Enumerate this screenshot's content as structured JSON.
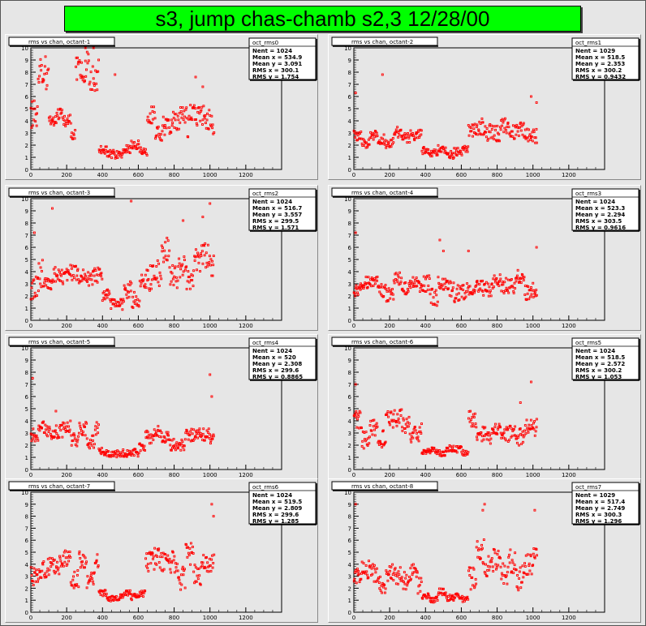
{
  "title": "s3, jump chas-chamb s2,3 12/28/00",
  "chart_data": [
    {
      "type": "scatter",
      "title": "rms vs chan, octant-1",
      "stats": {
        "name": "oct_rms0",
        "lines": [
          "Nent = 1024",
          "Mean x = 534.9",
          "Mean y = 3.091",
          "RMS x = 300.1",
          "RMS y = 1.754"
        ]
      },
      "xlim": [
        0,
        1400
      ],
      "ylim": [
        0,
        10
      ],
      "xticks": [
        0,
        200,
        400,
        600,
        800,
        1000,
        1200
      ],
      "yticks": [
        0,
        1,
        2,
        3,
        4,
        5,
        6,
        7,
        8,
        9,
        10
      ],
      "segments": [
        [
          0,
          40,
          2.0,
          5.2,
          7.3
        ],
        [
          40,
          100,
          4.2,
          6.5,
          9.3
        ],
        [
          100,
          180,
          3.2,
          4.2,
          5.2
        ],
        [
          180,
          250,
          2.4,
          3.5,
          4.5
        ],
        [
          250,
          300,
          5.0,
          7.0,
          9.6
        ],
        [
          300,
          380,
          3.0,
          7.0,
          10.0
        ],
        [
          380,
          650,
          0.8,
          1.4,
          2.4
        ],
        [
          650,
          880,
          2.0,
          3.8,
          5.4
        ],
        [
          880,
          1024,
          2.5,
          4.0,
          6.2
        ]
      ],
      "outliers": [
        [
          305,
          10.0
        ],
        [
          350,
          10.0
        ],
        [
          470,
          7.8
        ],
        [
          920,
          7.6
        ],
        [
          960,
          6.8
        ]
      ],
      "color": "#ff0000"
    },
    {
      "type": "scatter",
      "title": "rms vs chan, octant-2",
      "stats": {
        "name": "oct_rms1",
        "lines": [
          "Nent = 1029",
          "Mean x = 518.5",
          "Mean y = 2.353",
          "RMS x = 300.2",
          "RMS y = 0.9432"
        ]
      },
      "xlim": [
        0,
        1400
      ],
      "ylim": [
        0,
        10
      ],
      "xticks": [
        0,
        200,
        400,
        600,
        800,
        1000,
        1200
      ],
      "yticks": [
        0,
        1,
        2,
        3,
        4,
        5,
        6,
        7,
        8,
        9,
        10
      ],
      "segments": [
        [
          0,
          380,
          1.5,
          2.4,
          3.5
        ],
        [
          380,
          640,
          0.8,
          1.4,
          2.2
        ],
        [
          640,
          1024,
          2.0,
          3.3,
          5.0
        ]
      ],
      "outliers": [
        [
          10,
          6.3
        ],
        [
          160,
          7.8
        ],
        [
          990,
          6.0
        ],
        [
          1020,
          5.5
        ]
      ],
      "color": "#ff0000"
    },
    {
      "type": "scatter",
      "title": "rms vs chan, octant-3",
      "stats": {
        "name": "oct_rms2",
        "lines": [
          "Nent = 1024",
          "Mean x = 516.7",
          "Mean y = 3.557",
          "RMS x = 299.5",
          "RMS y = 1.571"
        ]
      },
      "xlim": [
        0,
        1400
      ],
      "ylim": [
        0,
        10
      ],
      "xticks": [
        0,
        200,
        400,
        600,
        800,
        1000,
        1200
      ],
      "yticks": [
        0,
        1,
        2,
        3,
        4,
        5,
        6,
        7,
        8,
        9,
        10
      ],
      "segments": [
        [
          0,
          80,
          1.5,
          4.0,
          6.5
        ],
        [
          80,
          400,
          2.2,
          3.5,
          5.0
        ],
        [
          400,
          520,
          0.8,
          1.8,
          3.0
        ],
        [
          520,
          640,
          1.0,
          2.2,
          4.0
        ],
        [
          640,
          1024,
          2.0,
          4.0,
          6.8
        ]
      ],
      "outliers": [
        [
          20,
          7.2
        ],
        [
          120,
          9.2
        ],
        [
          560,
          9.8
        ],
        [
          850,
          8.2
        ],
        [
          960,
          8.5
        ],
        [
          1000,
          9.6
        ]
      ],
      "color": "#ff0000"
    },
    {
      "type": "scatter",
      "title": "rms vs chan, octant-4",
      "stats": {
        "name": "oct_rms3",
        "lines": [
          "Nent = 1024",
          "Mean x = 523.3",
          "Mean y = 2.294",
          "RMS x = 303.5",
          "RMS y = 0.9616"
        ]
      },
      "xlim": [
        0,
        1400
      ],
      "ylim": [
        0,
        10
      ],
      "xticks": [
        0,
        200,
        400,
        600,
        800,
        1000,
        1200
      ],
      "yticks": [
        0,
        1,
        2,
        3,
        4,
        5,
        6,
        7,
        8,
        9,
        10
      ],
      "segments": [
        [
          0,
          380,
          1.5,
          2.5,
          4.0
        ],
        [
          380,
          640,
          0.8,
          1.8,
          4.0
        ],
        [
          640,
          1024,
          1.4,
          2.7,
          4.2
        ]
      ],
      "outliers": [
        [
          10,
          7.2
        ],
        [
          480,
          6.6
        ],
        [
          500,
          5.7
        ],
        [
          640,
          5.7
        ],
        [
          1020,
          6.0
        ]
      ],
      "color": "#ff0000"
    },
    {
      "type": "scatter",
      "title": "rms vs chan, octant-5",
      "stats": {
        "name": "oct_rms4",
        "lines": [
          "Nent = 1024",
          "Mean x =    520",
          "Mean y = 2.308",
          "RMS x = 299.6",
          "RMS y = 0.8865"
        ]
      },
      "xlim": [
        0,
        1400
      ],
      "ylim": [
        0,
        10
      ],
      "xticks": [
        0,
        200,
        400,
        600,
        800,
        1000,
        1200
      ],
      "yticks": [
        0,
        1,
        2,
        3,
        4,
        5,
        6,
        7,
        8,
        9,
        10
      ],
      "segments": [
        [
          0,
          380,
          1.5,
          2.8,
          4.0
        ],
        [
          380,
          640,
          0.8,
          1.4,
          2.2
        ],
        [
          640,
          1024,
          1.5,
          2.6,
          3.8
        ]
      ],
      "outliers": [
        [
          10,
          7.5
        ],
        [
          140,
          4.8
        ],
        [
          1000,
          7.8
        ],
        [
          1010,
          6.0
        ]
      ],
      "color": "#ff0000"
    },
    {
      "type": "scatter",
      "title": "rms vs chan, octant-6",
      "stats": {
        "name": "oct_rms5",
        "lines": [
          "Nent = 1024",
          "Mean x = 518.5",
          "Mean y = 2.572",
          "RMS x = 300.2",
          "RMS y = 1.053"
        ]
      },
      "xlim": [
        0,
        1400
      ],
      "ylim": [
        0,
        10
      ],
      "xticks": [
        0,
        200,
        400,
        600,
        800,
        1000,
        1200
      ],
      "yticks": [
        0,
        1,
        2,
        3,
        4,
        5,
        6,
        7,
        8,
        9,
        10
      ],
      "segments": [
        [
          0,
          380,
          1.5,
          3.0,
          5.0
        ],
        [
          380,
          640,
          0.8,
          1.3,
          2.0
        ],
        [
          640,
          1024,
          1.6,
          3.0,
          4.8
        ]
      ],
      "outliers": [
        [
          10,
          7.0
        ],
        [
          930,
          5.5
        ],
        [
          990,
          7.2
        ]
      ],
      "color": "#ff0000"
    },
    {
      "type": "scatter",
      "title": "rms vs chan, octant-7",
      "stats": {
        "name": "oct_rms6",
        "lines": [
          "Nent = 1024",
          "Mean x = 519.5",
          "Mean y = 2.809",
          "RMS x = 299.6",
          "RMS y = 1.285"
        ]
      },
      "xlim": [
        0,
        1400
      ],
      "ylim": [
        0,
        10
      ],
      "xticks": [
        0,
        200,
        400,
        600,
        800,
        1000,
        1200
      ],
      "yticks": [
        0,
        1,
        2,
        3,
        4,
        5,
        6,
        7,
        8,
        9,
        10
      ],
      "segments": [
        [
          0,
          380,
          2.0,
          3.6,
          5.5
        ],
        [
          380,
          640,
          0.8,
          1.3,
          2.0
        ],
        [
          640,
          1024,
          1.8,
          3.6,
          6.0
        ]
      ],
      "outliers": [
        [
          1010,
          9.0
        ],
        [
          1020,
          8.0
        ]
      ],
      "color": "#ff0000"
    },
    {
      "type": "scatter",
      "title": "rms vs chan, octant-8",
      "stats": {
        "name": "oct_rms7",
        "lines": [
          "Nent = 1029",
          "Mean x = 517.4",
          "Mean y = 2.749",
          "RMS x = 300.3",
          "RMS y = 1.296"
        ]
      },
      "xlim": [
        0,
        1400
      ],
      "ylim": [
        0,
        10
      ],
      "xticks": [
        0,
        200,
        400,
        600,
        800,
        1000,
        1200
      ],
      "yticks": [
        0,
        1,
        2,
        3,
        4,
        5,
        6,
        7,
        8,
        9,
        10
      ],
      "segments": [
        [
          0,
          380,
          1.5,
          3.2,
          5.0
        ],
        [
          380,
          640,
          0.8,
          1.2,
          2.0
        ],
        [
          640,
          1024,
          1.8,
          3.5,
          6.5
        ]
      ],
      "outliers": [
        [
          10,
          9.0
        ],
        [
          730,
          9.0
        ],
        [
          720,
          8.5
        ],
        [
          1010,
          8.5
        ]
      ],
      "color": "#ff0000"
    }
  ]
}
